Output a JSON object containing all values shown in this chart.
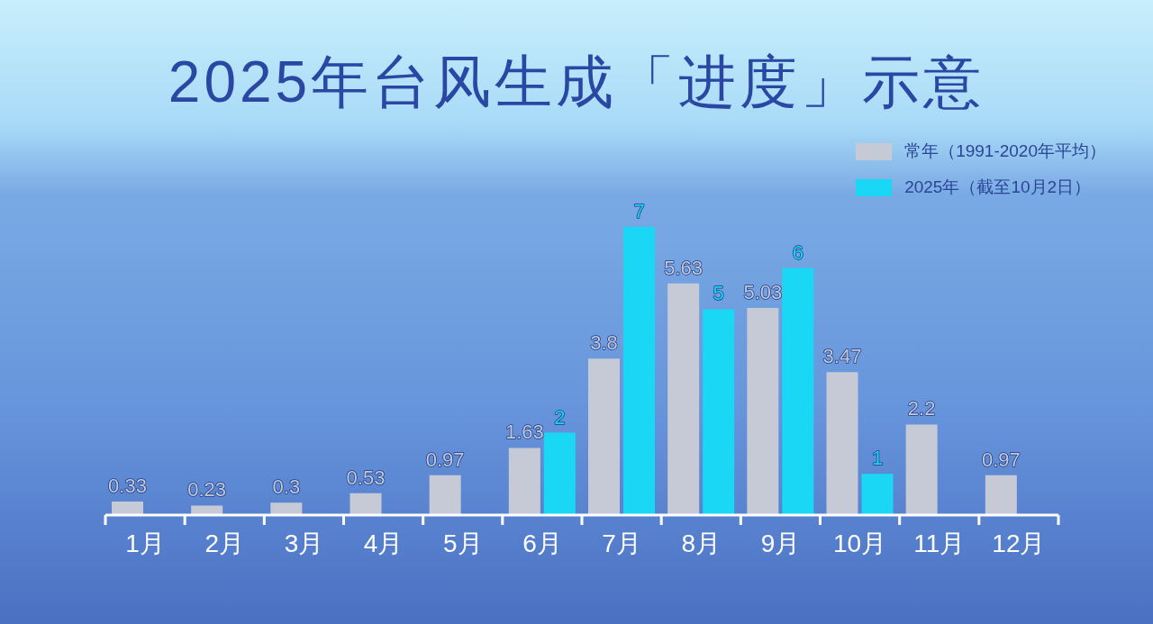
{
  "chart_data": {
    "type": "bar",
    "title": "2025年台风生成「进度」示意",
    "categories": [
      "1月",
      "2月",
      "3月",
      "4月",
      "5月",
      "6月",
      "7月",
      "8月",
      "9月",
      "10月",
      "11月",
      "12月"
    ],
    "series": [
      {
        "name": "常年（1991-2020年平均）",
        "color": "#c5cad6",
        "values": [
          0.33,
          0.23,
          0.3,
          0.53,
          0.97,
          1.63,
          3.8,
          5.63,
          5.03,
          3.47,
          2.2,
          0.97
        ]
      },
      {
        "name": "2025年（截至10月2日）",
        "color": "#1ad8f5",
        "values": [
          null,
          null,
          null,
          null,
          null,
          2,
          7,
          5,
          6,
          1,
          null,
          null
        ]
      }
    ],
    "data_labels": true,
    "legend": "top right",
    "tick_labels": "x"
  }
}
